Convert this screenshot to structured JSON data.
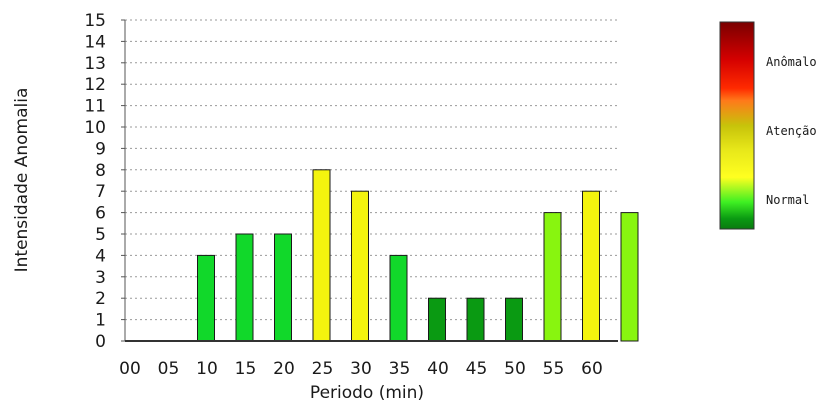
{
  "chart_data": {
    "type": "bar",
    "title": "",
    "xlabel": "Periodo (min)",
    "ylabel": "Intensidade Anomalia",
    "categories": [
      "00",
      "05",
      "10",
      "15",
      "20",
      "25",
      "30",
      "35",
      "40",
      "45",
      "50",
      "55",
      "60"
    ],
    "values": [
      0,
      4,
      5,
      5,
      8,
      7,
      4,
      2,
      2,
      2,
      6,
      7,
      6
    ],
    "bar_colors": [
      "#ffffff",
      "#11d82a",
      "#11d82a",
      "#11d82a",
      "#f4f40e",
      "#f4f40e",
      "#11d82a",
      "#0a9a12",
      "#0a9a12",
      "#0a9a12",
      "#88f50f",
      "#f4f40e",
      "#88f50f"
    ],
    "ylim": [
      0,
      15
    ],
    "yticks": [
      0,
      1,
      2,
      3,
      4,
      5,
      6,
      7,
      8,
      9,
      10,
      11,
      12,
      13,
      14,
      15
    ],
    "grid": "horizontal dotted",
    "legend": {
      "placement": "right",
      "gradient_colors": [
        "#7a0000",
        "#d40000",
        "#ff2a00",
        "#ff7a1a",
        "#c7c30a",
        "#e8e81a",
        "#ffff20",
        "#3ef023",
        "#0a9a12",
        "#0a7a10"
      ],
      "labels": [
        "Anômalo",
        "Atenção",
        "Normal"
      ]
    }
  }
}
